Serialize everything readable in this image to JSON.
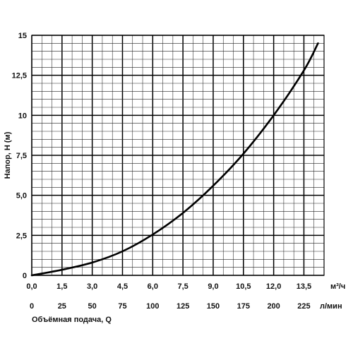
{
  "chart_data": {
    "type": "line",
    "ylabel": "Напор, Н (м)",
    "xlabel": "Объёмная подача, Q",
    "x_unit": "м³/ч",
    "x2_unit": "л/мин",
    "xlim": [
      0,
      14.5
    ],
    "ylim": [
      0,
      15
    ],
    "x_ticks": [
      "0,0",
      "1,5",
      "3,0",
      "4,5",
      "6,0",
      "7,5",
      "9,0",
      "10,5",
      "12,0",
      "13,5"
    ],
    "x2_ticks": [
      "0",
      "25",
      "50",
      "75",
      "100",
      "125",
      "150",
      "175",
      "200",
      "225"
    ],
    "y_ticks": [
      "0",
      "2,5",
      "5,0",
      "7,5",
      "10",
      "12,5",
      "15"
    ],
    "grid": true,
    "series": [
      {
        "x": [
          0,
          1.5,
          3.0,
          4.5,
          6.0,
          7.5,
          9.0,
          10.5,
          12.0,
          13.5,
          14.2
        ],
        "y": [
          0,
          0.35,
          0.8,
          1.5,
          2.55,
          3.9,
          5.6,
          7.6,
          10.0,
          12.8,
          14.5
        ]
      }
    ]
  }
}
